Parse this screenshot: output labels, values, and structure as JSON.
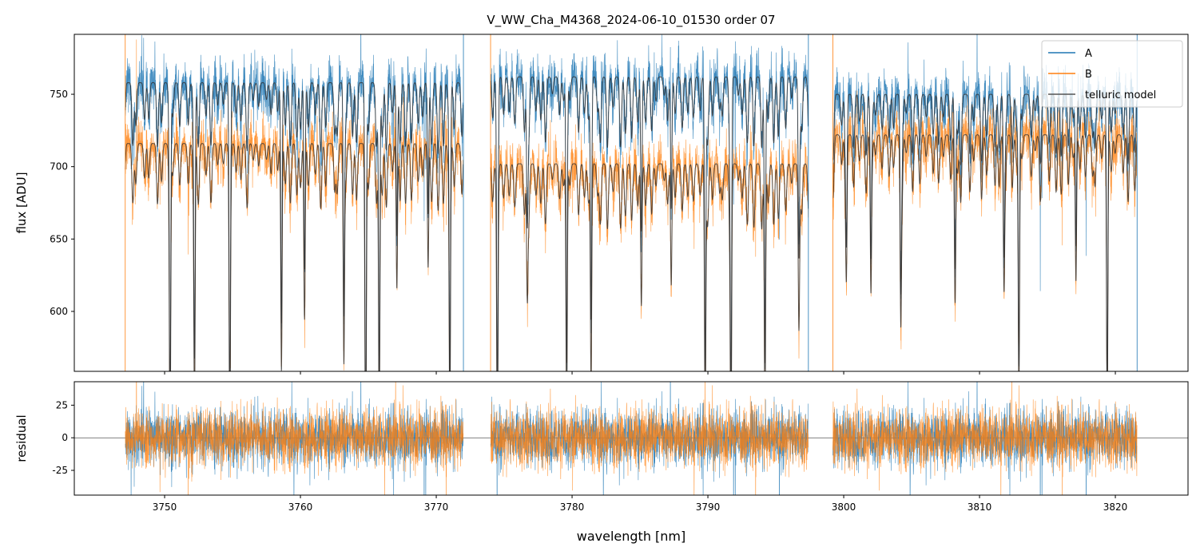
{
  "chart_data": {
    "type": "line",
    "title": "V_WW_Cha_M4368_2024-06-10_01530  order 07",
    "xlabel": "wavelength [nm]",
    "xlim": [
      3743.35,
      3825.35
    ],
    "xticks": [
      3750,
      3760,
      3770,
      3780,
      3790,
      3800,
      3810,
      3820
    ],
    "top_panel": {
      "ylabel": "flux [ADU]",
      "ylim": [
        558.6,
        791.4
      ],
      "yticks": [
        600,
        650,
        700,
        750
      ]
    },
    "bottom_panel": {
      "ylabel": "residual",
      "ylim": [
        -44,
        43
      ],
      "yticks": [
        -25,
        0,
        25
      ]
    },
    "segments": [
      {
        "range": [
          3747.1,
          3772.0
        ],
        "continuum_A": 758,
        "continuum_B": 716
      },
      {
        "range": [
          3774.0,
          3797.4
        ],
        "continuum_A": 762,
        "continuum_B": 702
      },
      {
        "range": [
          3799.2,
          3821.6
        ],
        "continuum_A": 750,
        "continuum_B": 722
      }
    ],
    "telluric_lines": [
      {
        "wl": 3750.4,
        "depth": 0.28
      },
      {
        "wl": 3752.2,
        "depth": 0.24
      },
      {
        "wl": 3754.8,
        "depth": 0.27
      },
      {
        "wl": 3758.6,
        "depth": 0.22
      },
      {
        "wl": 3760.3,
        "depth": 0.17
      },
      {
        "wl": 3763.2,
        "depth": 0.21
      },
      {
        "wl": 3764.8,
        "depth": 0.28
      },
      {
        "wl": 3765.8,
        "depth": 0.28
      },
      {
        "wl": 3767.1,
        "depth": 0.14
      },
      {
        "wl": 3769.4,
        "depth": 0.12
      },
      {
        "wl": 3771.0,
        "depth": 0.28
      },
      {
        "wl": 3774.5,
        "depth": 0.26
      },
      {
        "wl": 3776.7,
        "depth": 0.12
      },
      {
        "wl": 3779.6,
        "depth": 0.26
      },
      {
        "wl": 3781.4,
        "depth": 0.22
      },
      {
        "wl": 3785.1,
        "depth": 0.14
      },
      {
        "wl": 3787.3,
        "depth": 0.12
      },
      {
        "wl": 3789.8,
        "depth": 0.27
      },
      {
        "wl": 3791.7,
        "depth": 0.26
      },
      {
        "wl": 3794.2,
        "depth": 0.26
      },
      {
        "wl": 3796.7,
        "depth": 0.12
      },
      {
        "wl": 3800.2,
        "depth": 0.1
      },
      {
        "wl": 3802.0,
        "depth": 0.14
      },
      {
        "wl": 3804.2,
        "depth": 0.16
      },
      {
        "wl": 3808.2,
        "depth": 0.16
      },
      {
        "wl": 3811.8,
        "depth": 0.14
      },
      {
        "wl": 3812.9,
        "depth": 0.25
      },
      {
        "wl": 3817.1,
        "depth": 0.14
      },
      {
        "wl": 3819.4,
        "depth": 0.28
      }
    ],
    "shallow_line_spacing_nm": 0.45,
    "noise_sigma": {
      "A": 9,
      "B": 9
    },
    "series": [
      {
        "name": "A",
        "color": "#1f77b4"
      },
      {
        "name": "B",
        "color": "#ff7f0e"
      },
      {
        "name": "telluric model",
        "color": "#333333"
      }
    ],
    "legend_placement": "top-right"
  }
}
